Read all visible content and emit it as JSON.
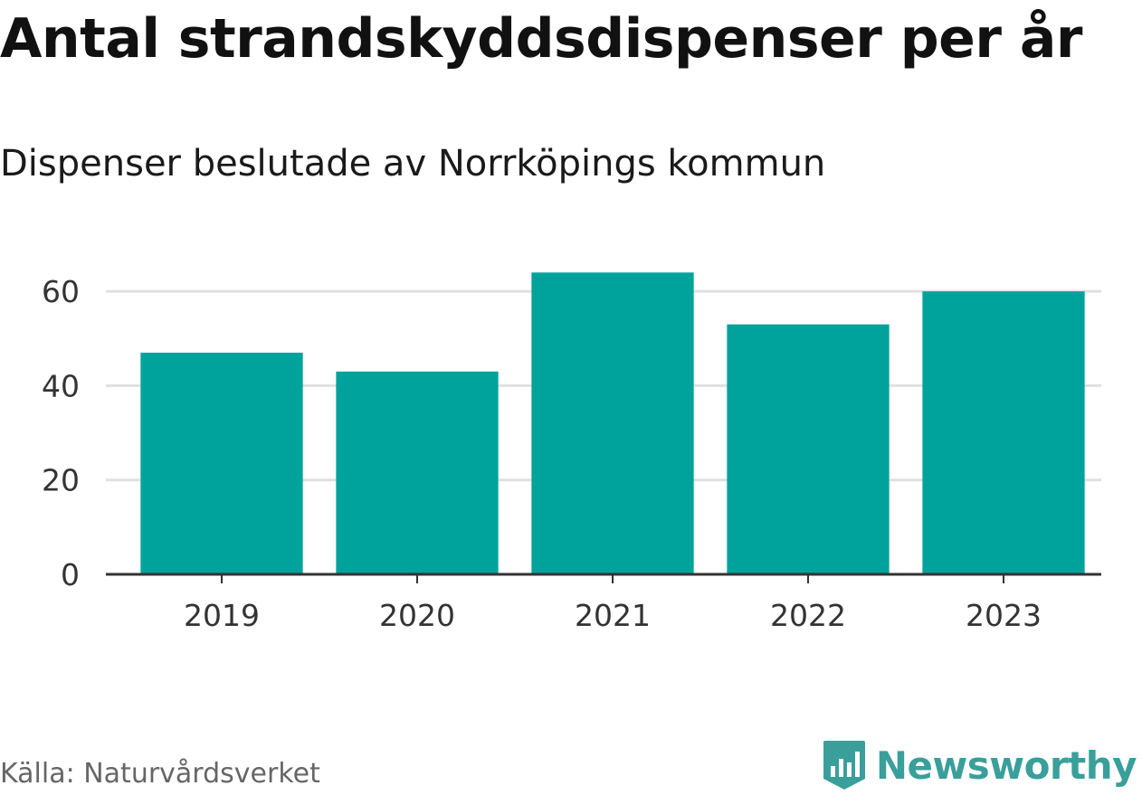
{
  "header": {
    "title": "Antal strandskyddsdispenser per år",
    "subtitle": "Dispenser beslutade av Norrköpings kommun"
  },
  "footer": {
    "source": "Källa: Naturvårdsverket",
    "brand": "Newsworthy",
    "brand_icon": "bar-chart-badge-icon"
  },
  "colors": {
    "bar": "#00a39b",
    "grid": "#e0e0e0",
    "axis": "#333333",
    "brand": "#3a9f9b"
  },
  "chart_data": {
    "type": "bar",
    "categories": [
      "2019",
      "2020",
      "2021",
      "2022",
      "2023"
    ],
    "values": [
      47,
      43,
      64,
      53,
      60
    ],
    "title": "Antal strandskyddsdispenser per år",
    "subtitle": "Dispenser beslutade av Norrköpings kommun",
    "xlabel": "",
    "ylabel": "",
    "ylim": [
      0,
      70
    ],
    "yticks": [
      0,
      20,
      40,
      60
    ],
    "grid": true
  }
}
